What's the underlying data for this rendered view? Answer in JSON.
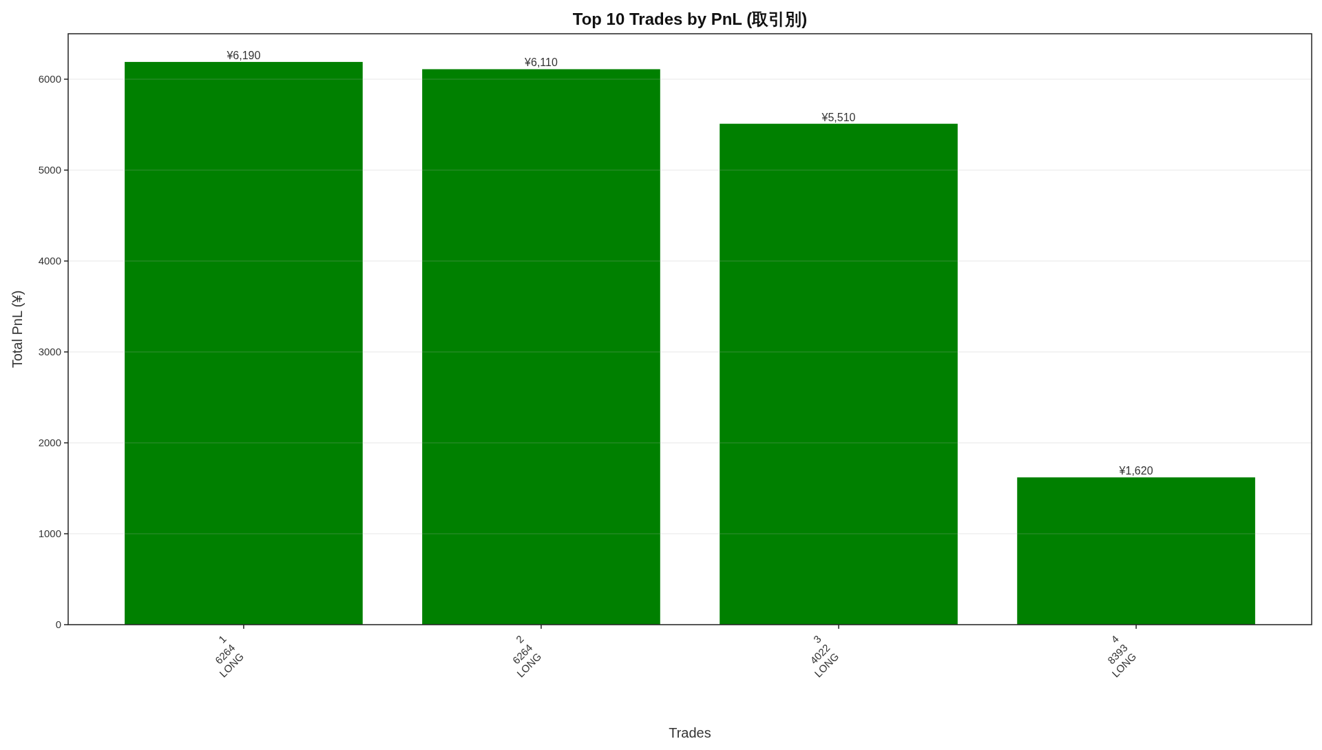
{
  "chart_data": {
    "type": "bar",
    "title": "Top 10 Trades by PnL (取引別)",
    "xlabel": "Trades",
    "ylabel": "Total PnL (¥)",
    "categories": [
      "1\n6264\nLONG",
      "2\n6264\nLONG",
      "3\n4022\nLONG",
      "4\n8393\nLONG"
    ],
    "values": [
      6190,
      6110,
      5510,
      1620
    ],
    "value_labels": [
      "¥6,190",
      "¥6,110",
      "¥5,510",
      "¥1,620"
    ],
    "color": "#008000",
    "ylim": [
      0,
      6500
    ],
    "yticks": [
      0,
      1000,
      2000,
      3000,
      4000,
      5000,
      6000
    ],
    "grid": "y"
  }
}
